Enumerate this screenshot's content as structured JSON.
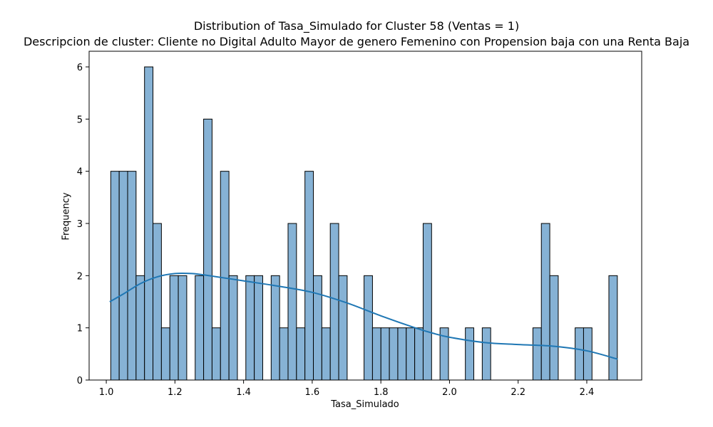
{
  "chart_data": {
    "type": "bar",
    "title": "Distribution of Tasa_Simulado for Cluster 58 (Ventas = 1)",
    "subtitle": "Descripcion de cluster: Cliente no Digital Adulto Mayor de genero Femenino con Propension baja con una Renta Baja",
    "xlabel": "Tasa_Simulado",
    "ylabel": "Frequency",
    "xlim": [
      0.95,
      2.56
    ],
    "ylim": [
      0,
      6.3
    ],
    "grid": false,
    "xticks": [
      1.0,
      1.2,
      1.4,
      1.6,
      1.8,
      2.0,
      2.2,
      2.4
    ],
    "xtick_labels": [
      "1.0",
      "1.2",
      "1.4",
      "1.6",
      "1.8",
      "2.0",
      "2.2",
      "2.4"
    ],
    "yticks": [
      0,
      1,
      2,
      3,
      4,
      5,
      6
    ],
    "ytick_labels": [
      "0",
      "1",
      "2",
      "3",
      "4",
      "5",
      "6"
    ],
    "bin_start": 1.013,
    "bin_width": 0.0246,
    "counts": [
      4,
      4,
      4,
      2,
      6,
      3,
      1,
      2,
      2,
      0,
      2,
      5,
      1,
      4,
      2,
      0,
      2,
      2,
      0,
      2,
      1,
      3,
      1,
      4,
      2,
      1,
      3,
      2,
      0,
      0,
      2,
      1,
      1,
      1,
      1,
      1,
      1,
      3,
      0,
      1,
      0,
      0,
      1,
      0,
      1,
      0,
      0,
      0,
      0,
      0,
      1,
      3,
      2,
      0,
      0,
      1,
      1,
      0,
      0,
      2
    ],
    "kde": {
      "x": [
        1.01,
        1.05,
        1.1,
        1.15,
        1.2,
        1.25,
        1.3,
        1.4,
        1.5,
        1.6,
        1.7,
        1.8,
        1.9,
        1.95,
        2.0,
        2.1,
        2.2,
        2.3,
        2.4,
        2.49
      ],
      "y": [
        1.5,
        1.65,
        1.85,
        1.98,
        2.04,
        2.04,
        2.0,
        1.9,
        1.8,
        1.68,
        1.48,
        1.23,
        1.0,
        0.9,
        0.82,
        0.72,
        0.68,
        0.65,
        0.56,
        0.4
      ]
    },
    "colors": {
      "bar_fill": "#86b2d5",
      "bar_edge": "#000000",
      "kde_line": "#1f77b4"
    }
  }
}
